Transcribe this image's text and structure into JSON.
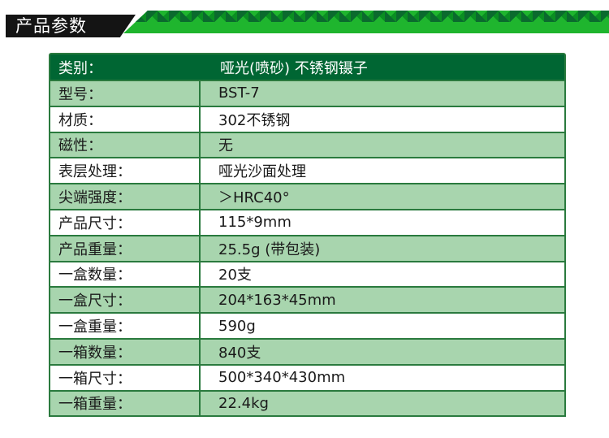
{
  "section_title": "产品参数",
  "colors": {
    "header_bg": "#006633",
    "row_green": "#a8d5ae",
    "border": "#2a7a3e"
  },
  "table": {
    "header": {
      "label": "类别：",
      "value": "哑光(喷砂) 不锈钢镊子"
    },
    "rows": [
      {
        "label": "型号：",
        "value": "BST-7"
      },
      {
        "label": "材质：",
        "value": "302不锈钢"
      },
      {
        "label": "磁性：",
        "value": "无"
      },
      {
        "label": "表层处理：",
        "value": "哑光沙面处理"
      },
      {
        "label": "尖端强度：",
        "value": "＞HRC40°"
      },
      {
        "label": "产品尺寸：",
        "value": "115*9mm"
      },
      {
        "label": "产品重量：",
        "value": "25.5g (带包装)"
      },
      {
        "label": "一盒数量：",
        "value": "20支"
      },
      {
        "label": "一盒尺寸：",
        "value": "204*163*45mm"
      },
      {
        "label": "一盒重量：",
        "value": "590g"
      },
      {
        "label": "一箱数量：",
        "value": "840支"
      },
      {
        "label": "一箱尺寸：",
        "value": "500*340*430mm"
      },
      {
        "label": "一箱重量：",
        "value": "22.4kg"
      }
    ]
  }
}
